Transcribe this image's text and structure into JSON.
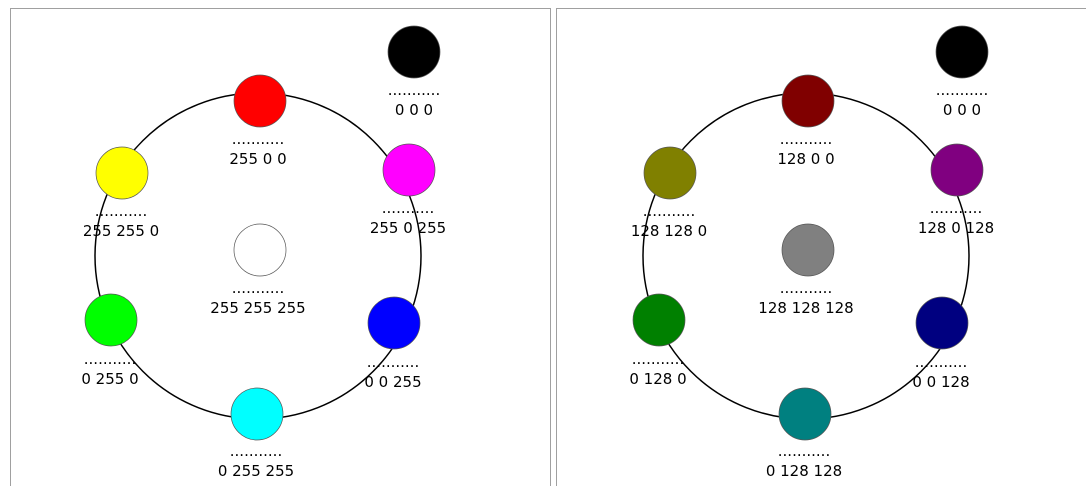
{
  "panels": [
    {
      "dots": "...........",
      "center": {
        "label": "255 255 255",
        "color": "#ffffff"
      },
      "corner": {
        "label": "0 0 0",
        "color": "#000000"
      },
      "ring": [
        {
          "label": "255 0 0",
          "color": "#ff0000"
        },
        {
          "label": "255 0 255",
          "color": "#ff00ff"
        },
        {
          "label": "0 0 255",
          "color": "#0000ff"
        },
        {
          "label": "0 255 255",
          "color": "#00ffff"
        },
        {
          "label": "0 255 0",
          "color": "#00ff00"
        },
        {
          "label": "255 255 0",
          "color": "#ffff00"
        }
      ]
    },
    {
      "dots": "...........",
      "center": {
        "label": "128 128 128",
        "color": "#808080"
      },
      "corner": {
        "label": "0 0 0",
        "color": "#000000"
      },
      "ring": [
        {
          "label": "128 0 0",
          "color": "#800000"
        },
        {
          "label": "128 0 128",
          "color": "#800080"
        },
        {
          "label": "0 0 128",
          "color": "#000080"
        },
        {
          "label": "0 128 128",
          "color": "#008080"
        },
        {
          "label": "0 128 0",
          "color": "#008000"
        },
        {
          "label": "128 128 0",
          "color": "#808000"
        }
      ]
    }
  ]
}
